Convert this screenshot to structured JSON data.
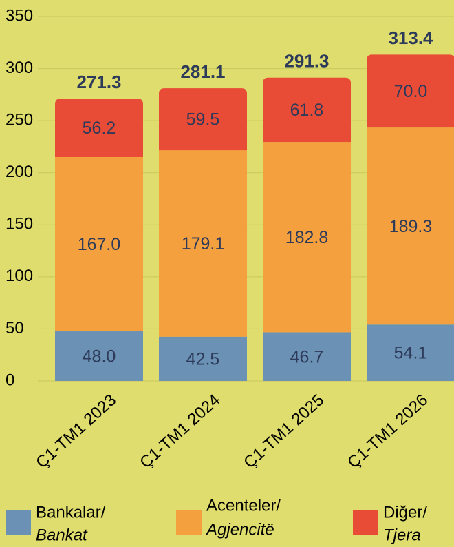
{
  "chart_data": {
    "type": "stacked_bar",
    "categories": [
      "Ç1-TM1 2023",
      "Ç1-TM1 2024",
      "Ç1-TM1 2025",
      "Ç1-TM1 2026"
    ],
    "series": [
      {
        "name": "Bankalar/",
        "name2": "Bankat",
        "color": "#6b92b4",
        "values": [
          48.0,
          42.5,
          46.7,
          54.1
        ],
        "value_labels": [
          "48.0",
          "42.5",
          "46.7",
          "54.1"
        ]
      },
      {
        "name": "Acenteler/",
        "name2": "Agjencitë",
        "color": "#f5a03f",
        "values": [
          167.0,
          179.1,
          182.8,
          189.3
        ],
        "value_labels": [
          "167.0",
          "179.1",
          "182.8",
          "189.3"
        ]
      },
      {
        "name": "Diğer/",
        "name2": "Tjera",
        "color": "#e84b36",
        "values": [
          56.2,
          59.5,
          61.8,
          70.0
        ],
        "value_labels": [
          "56.2",
          "59.5",
          "61.8",
          "70.0"
        ]
      }
    ],
    "totals": [
      271.3,
      281.1,
      291.3,
      313.4
    ],
    "ylim": [
      0,
      350
    ],
    "yticks": [
      0,
      50,
      100,
      150,
      200,
      250,
      300,
      350
    ],
    "grid": true
  }
}
